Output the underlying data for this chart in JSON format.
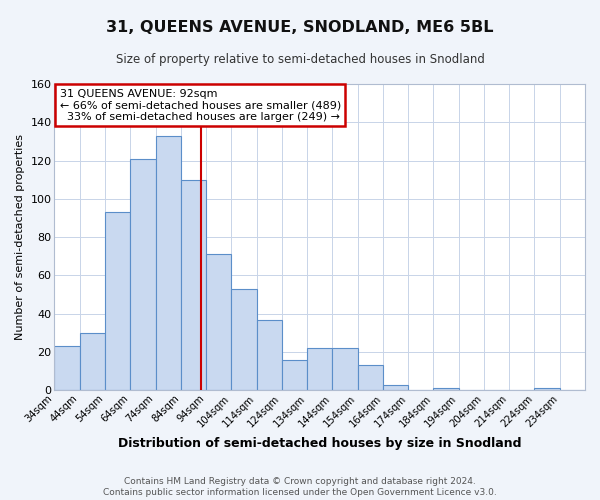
{
  "title": "31, QUEENS AVENUE, SNODLAND, ME6 5BL",
  "subtitle": "Size of property relative to semi-detached houses in Snodland",
  "xlabel": "Distribution of semi-detached houses by size in Snodland",
  "ylabel": "Number of semi-detached properties",
  "bin_labels": [
    "34sqm",
    "44sqm",
    "54sqm",
    "64sqm",
    "74sqm",
    "84sqm",
    "94sqm",
    "104sqm",
    "114sqm",
    "124sqm",
    "134sqm",
    "144sqm",
    "154sqm",
    "164sqm",
    "174sqm",
    "184sqm",
    "194sqm",
    "204sqm",
    "214sqm",
    "224sqm",
    "234sqm"
  ],
  "bin_edges": [
    34,
    44,
    54,
    64,
    74,
    84,
    94,
    104,
    114,
    124,
    134,
    144,
    154,
    164,
    174,
    184,
    194,
    204,
    214,
    224,
    234,
    244
  ],
  "bar_heights": [
    23,
    30,
    93,
    121,
    133,
    110,
    71,
    53,
    37,
    16,
    22,
    22,
    13,
    3,
    0,
    1,
    0,
    0,
    0,
    1,
    0
  ],
  "bar_color": "#c9d9f0",
  "bar_edge_color": "#5b8ec9",
  "property_value": 92,
  "vline_color": "#cc0000",
  "annotation_title": "31 QUEENS AVENUE: 92sqm",
  "annotation_line1": "← 66% of semi-detached houses are smaller (489)",
  "annotation_line2": "  33% of semi-detached houses are larger (249) →",
  "annotation_box_color": "#cc0000",
  "ylim": [
    0,
    160
  ],
  "yticks": [
    0,
    20,
    40,
    60,
    80,
    100,
    120,
    140,
    160
  ],
  "footer_line1": "Contains HM Land Registry data © Crown copyright and database right 2024.",
  "footer_line2": "Contains public sector information licensed under the Open Government Licence v3.0.",
  "fig_bg_color": "#f0f4fa",
  "plot_bg_color": "#ffffff"
}
